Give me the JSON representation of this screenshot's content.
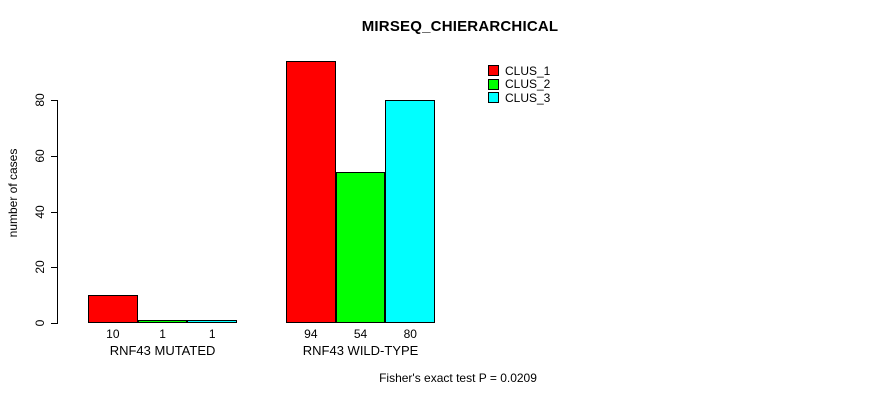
{
  "chart_data": {
    "type": "bar",
    "title": "MIRSEQ_CHIERARCHICAL",
    "xlabel": "",
    "ylabel": "number of cases",
    "ylim": [
      0,
      80
    ],
    "yticks": [
      0,
      20,
      40,
      60,
      80
    ],
    "grid": false,
    "legend_position": "top-right",
    "categories": [
      "RNF43 MUTATED",
      "RNF43 WILD-TYPE"
    ],
    "series": [
      {
        "name": "CLUS_1",
        "color": "#ff0000",
        "values": [
          10,
          94
        ]
      },
      {
        "name": "CLUS_2",
        "color": "#00ff00",
        "values": [
          1,
          54
        ]
      },
      {
        "name": "CLUS_3",
        "color": "#00ffff",
        "values": [
          1,
          80
        ]
      }
    ],
    "bar_value_labels": [
      [
        "10",
        "1",
        "1"
      ],
      [
        "94",
        "54",
        "80"
      ]
    ],
    "annotation": "Fisher's exact test P = 0.0209",
    "axis_color": "#000000",
    "background_color": "#ffffff"
  }
}
